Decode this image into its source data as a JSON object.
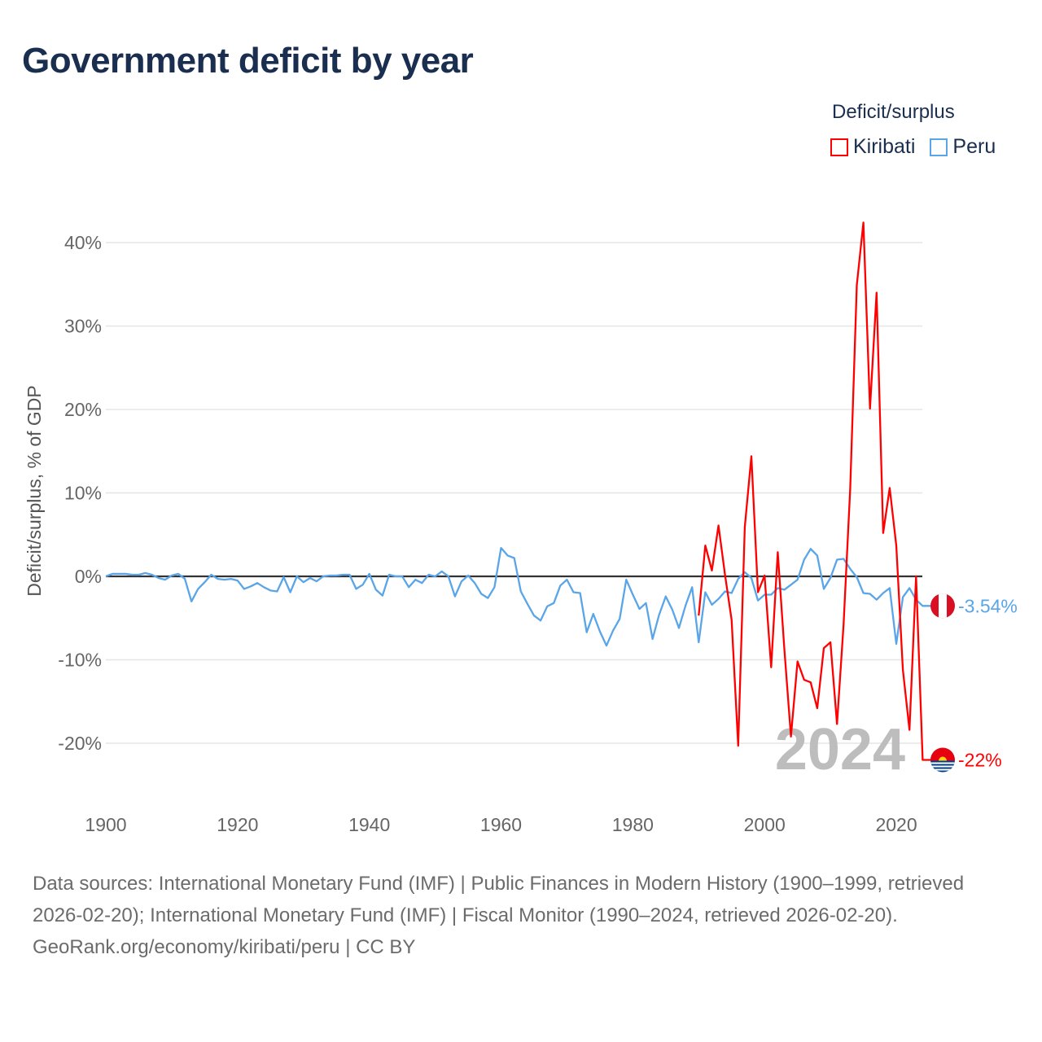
{
  "title": "Government deficit by year",
  "legend": {
    "title": "Deficit/surplus",
    "items": [
      {
        "name": "Kiribati",
        "color": "#ff0000"
      },
      {
        "name": "Peru",
        "color": "#5aa5e8"
      }
    ]
  },
  "footer": {
    "sources": "Data sources: International Monetary Fund (IMF) | Public Finances in Modern History (1900–1999, retrieved 2026-02-20); International Monetary Fund (IMF) | Fiscal Monitor (1990–2024, retrieved 2026-02-20).",
    "credit": "GeoRank.org/economy/kiribati/peru | CC BY"
  },
  "chart_data": {
    "type": "line",
    "title": "Government deficit by year",
    "xlabel": "",
    "ylabel": "Deficit/surplus, % of GDP",
    "xlim": [
      1900,
      2024
    ],
    "ylim": [
      -27,
      43
    ],
    "x_ticks": [
      "1900",
      "1920",
      "1940",
      "1960",
      "1980",
      "2000",
      "2020"
    ],
    "y_ticks": [
      {
        "v": 40,
        "label": "40%"
      },
      {
        "v": 30,
        "label": "30%"
      },
      {
        "v": 20,
        "label": "20%"
      },
      {
        "v": 10,
        "label": "10%"
      },
      {
        "v": 0,
        "label": "0%"
      },
      {
        "v": -10,
        "label": "-10%"
      },
      {
        "v": -20,
        "label": "-20%"
      }
    ],
    "grid": true,
    "year_watermark": "2024",
    "series": [
      {
        "name": "Peru",
        "color": "#5aa5e8",
        "start_year": 1900,
        "end_label": "-3.54%",
        "values": [
          0,
          0.3,
          0.3,
          0.3,
          0.2,
          0.2,
          0.4,
          0.2,
          -0.2,
          -0.4,
          0.1,
          0.3,
          -0.3,
          -3.0,
          -1.5,
          -0.7,
          0.2,
          -0.3,
          -0.4,
          -0.3,
          -0.5,
          -1.5,
          -1.2,
          -0.8,
          -1.3,
          -1.7,
          -1.8,
          -0.1,
          -1.9,
          0,
          -0.7,
          -0.2,
          -0.6,
          0,
          0.1,
          0.1,
          0.2,
          0.2,
          -1.5,
          -1.0,
          0.3,
          -1.6,
          -2.3,
          0.2,
          0,
          0,
          -1.3,
          -0.4,
          -0.8,
          0.2,
          0,
          0.6,
          0,
          -2.4,
          -0.6,
          0.1,
          -0.8,
          -2.1,
          -2.6,
          -1.3,
          3.4,
          2.5,
          2.2,
          -1.8,
          -3.3,
          -4.7,
          -5.3,
          -3.6,
          -3.2,
          -1.1,
          -0.4,
          -1.9,
          -2.0,
          -6.7,
          -4.5,
          -6.6,
          -8.3,
          -6.5,
          -5.1,
          -0.4,
          -2.2,
          -3.9,
          -3.2,
          -7.5,
          -4.6,
          -2.4,
          -4.0,
          -6.2,
          -3.5,
          -1.3,
          -7.9,
          -1.9,
          -3.4,
          -2.7,
          -1.8,
          -2.0,
          -0.3,
          0.5,
          -0.2,
          -2.9,
          -2.2,
          -2.2,
          -1.4,
          -1.6,
          -1.0,
          -0.4,
          2.0,
          3.3,
          2.5,
          -1.5,
          -0.2,
          2.0,
          2.1,
          0.9,
          -0.1,
          -2.0,
          -2.1,
          -2.8,
          -2.0,
          -1.4,
          -8.1,
          -2.5,
          -1.4,
          -2.8,
          -3.54
        ]
      },
      {
        "name": "Kiribati",
        "color": "#ff0000",
        "start_year": 1990,
        "end_label": "-22%",
        "values": [
          -4.7,
          3.7,
          0.7,
          6.1,
          0.2,
          -5.2,
          -20.3,
          5.9,
          14.4,
          -1.9,
          0.1,
          -10.9,
          2.9,
          -8.7,
          -19.2,
          -10.2,
          -12.4,
          -12.7,
          -15.8,
          -8.6,
          -7.9,
          -17.7,
          -5.7,
          10.5,
          34.9,
          42.4,
          20.1,
          34.0,
          5.2,
          10.6,
          3.7,
          -11.2,
          -18.4,
          0,
          -22
        ]
      }
    ]
  }
}
